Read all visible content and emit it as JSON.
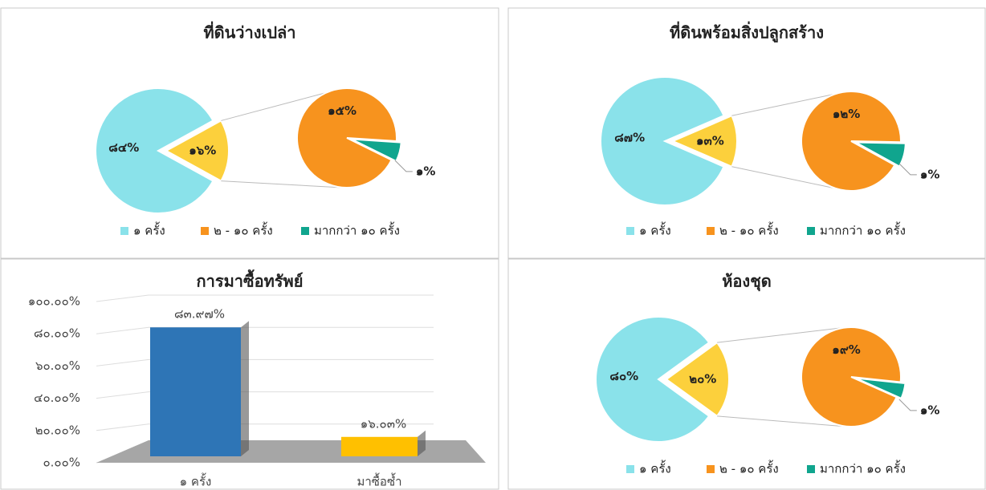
{
  "chart_data": [
    {
      "type": "pie-of-pie",
      "title": "ที่ดินว่างเปล่า",
      "categories": [
        "๑ ครั้ง",
        "๒ - ๑๐ ครั้ง",
        "มากกว่า ๑๐  ครั้ง"
      ],
      "values": [
        84,
        15,
        1
      ],
      "value_labels": [
        "๘๔%",
        "๑๕%",
        "๑%"
      ],
      "other_value": 16,
      "other_value_label": "๑๖%",
      "colors": [
        "#8ae2ea",
        "#f7931e",
        "#10a58e"
      ],
      "other_color": "#fcd03c",
      "legend": "bottom"
    },
    {
      "type": "pie-of-pie",
      "title": "ที่ดินพร้อมสิ่งปลูกสร้าง",
      "categories": [
        "๑ ครั้ง",
        "๒ - ๑๐ ครั้ง",
        "มากกว่า ๑๐  ครั้ง"
      ],
      "values": [
        87,
        12,
        1
      ],
      "value_labels": [
        "๘๗%",
        "๑๒%",
        "๑%"
      ],
      "other_value": 13,
      "other_value_label": "๑๓%",
      "colors": [
        "#8ae2ea",
        "#f7931e",
        "#10a58e"
      ],
      "other_color": "#fcd03c",
      "legend": "bottom"
    },
    {
      "type": "bar",
      "title": "การมาซื้อทรัพย์",
      "categories": [
        "๑ ครั้ง",
        "มาซื้อซ้ำ"
      ],
      "values": [
        83.97,
        16.03
      ],
      "value_labels": [
        "๘๓.๙๗%",
        "๑๖.๐๓%"
      ],
      "colors": [
        "#2e75b6",
        "#ffc000"
      ],
      "ylim": [
        0,
        100
      ],
      "yticks": [
        {
          "value": 0,
          "label": "๐.๐๐%"
        },
        {
          "value": 20,
          "label": "๒๐.๐๐%"
        },
        {
          "value": 40,
          "label": "๔๐.๐๐%"
        },
        {
          "value": 60,
          "label": "๖๐.๐๐%"
        },
        {
          "value": 80,
          "label": "๘๐.๐๐%"
        },
        {
          "value": 100,
          "label": "๑๐๐.๐๐%"
        }
      ],
      "grid": true
    },
    {
      "type": "pie-of-pie",
      "title": "ห้องชุด",
      "categories": [
        "๑ ครั้ง",
        "๒ - ๑๐ ครั้ง",
        "มากกว่า ๑๐  ครั้ง"
      ],
      "values": [
        80,
        19,
        1
      ],
      "value_labels": [
        "๘๐%",
        "๑๙%",
        "๑%"
      ],
      "other_value": 20,
      "other_value_label": "๒๐%",
      "colors": [
        "#8ae2ea",
        "#f7931e",
        "#10a58e"
      ],
      "other_color": "#fcd03c",
      "legend": "bottom"
    }
  ]
}
